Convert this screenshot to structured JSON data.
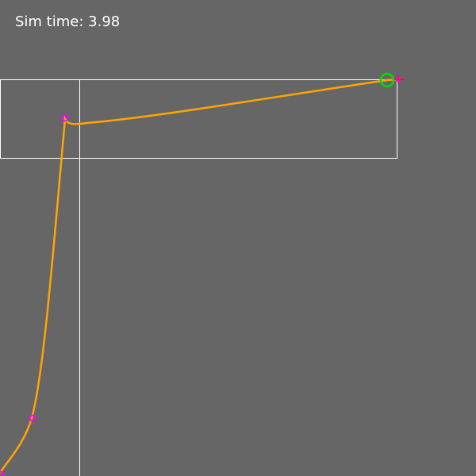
{
  "hud": {
    "sim_time_label": "Sim time:",
    "sim_time_value": "3.98"
  },
  "colors": {
    "background": "#666666",
    "boundary": "#ffffff",
    "path": "#ffa500",
    "waypoint": "#ff00ff",
    "agent": "#00e000",
    "target_marker": "#ff0040",
    "hud_text": "#ffffff"
  },
  "icons": {
    "agent": "green-circle-agent-icon",
    "waypoint": "magenta-ring-waypoint-icon",
    "target": "red-cross-target-icon"
  }
}
